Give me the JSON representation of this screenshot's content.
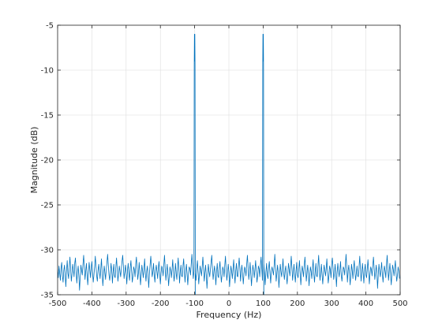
{
  "chart_data": {
    "type": "line",
    "title": "",
    "xlabel": "Frequency (Hz)",
    "ylabel": "Magnitude (dB)",
    "xlim": [
      -500,
      500
    ],
    "ylim": [
      -35,
      -5
    ],
    "xticks": [
      -500,
      -400,
      -300,
      -200,
      -100,
      0,
      100,
      200,
      300,
      400,
      500
    ],
    "yticks": [
      -35,
      -30,
      -25,
      -20,
      -15,
      -10,
      -5
    ],
    "grid": true,
    "series": [
      {
        "color": "#0072bd",
        "x_start": -500,
        "x_step": 2,
        "values": [
          -32.2,
          -33.1,
          -31.8,
          -32.6,
          -33.4,
          -32.0,
          -31.4,
          -32.9,
          -33.6,
          -32.3,
          -31.7,
          -32.8,
          -34.1,
          -32.4,
          -31.2,
          -32.6,
          -33.2,
          -31.9,
          -30.8,
          -32.1,
          -33.5,
          -32.7,
          -31.6,
          -32.2,
          -33.0,
          -31.5,
          -30.9,
          -32.4,
          -33.7,
          -32.5,
          -31.8,
          -32.9,
          -34.5,
          -33.0,
          -31.7,
          -32.3,
          -32.8,
          -31.6,
          -30.6,
          -31.9,
          -33.3,
          -32.4,
          -31.5,
          -32.7,
          -33.9,
          -32.6,
          -31.4,
          -32.2,
          -33.1,
          -32.0,
          -31.3,
          -32.5,
          -33.6,
          -32.8,
          -31.9,
          -30.7,
          -31.8,
          -32.9,
          -33.5,
          -32.3,
          -31.6,
          -32.4,
          -33.2,
          -32.1,
          -31.0,
          -32.6,
          -34.0,
          -32.9,
          -31.8,
          -32.5,
          -33.3,
          -32.2,
          -31.4,
          -30.5,
          -31.7,
          -32.8,
          -33.4,
          -32.6,
          -31.5,
          -32.3,
          -33.7,
          -32.4,
          -31.6,
          -32.9,
          -33.1,
          -31.9,
          -30.9,
          -32.2,
          -33.5,
          -32.7,
          -31.8,
          -32.4,
          -33.0,
          -32.1,
          -31.3,
          -30.6,
          -31.8,
          -33.2,
          -32.5,
          -31.7,
          -32.6,
          -33.8,
          -32.3,
          -31.5,
          -32.7,
          -33.4,
          -32.0,
          -31.2,
          -32.4,
          -33.6,
          -32.9,
          -31.9,
          -32.2,
          -33.0,
          -31.6,
          -30.8,
          -32.1,
          -33.3,
          -32.6,
          -31.4,
          -32.5,
          -33.9,
          -32.8,
          -31.7,
          -32.3,
          -33.1,
          -32.2,
          -31.0,
          -32.6,
          -33.5,
          -32.4,
          -31.8,
          -32.9,
          -34.2,
          -32.7,
          -31.6,
          -30.7,
          -31.9,
          -33.0,
          -32.5,
          -31.5,
          -32.8,
          -33.6,
          -32.3,
          -31.7,
          -32.4,
          -33.2,
          -32.0,
          -31.3,
          -32.7,
          -33.8,
          -32.6,
          -31.8,
          -32.1,
          -32.9,
          -31.7,
          -30.6,
          -32.0,
          -33.4,
          -32.5,
          -31.6,
          -32.8,
          -34.0,
          -32.9,
          -31.9,
          -32.3,
          -33.1,
          -32.2,
          -31.1,
          -32.5,
          -33.5,
          -32.7,
          -31.5,
          -32.6,
          -33.3,
          -32.0,
          -30.9,
          -32.2,
          -33.7,
          -32.4,
          -31.7,
          -32.9,
          -33.0,
          -31.8,
          -31.0,
          -32.5,
          -33.6,
          -32.3,
          -31.6,
          -32.7,
          -33.9,
          -32.6,
          -31.9,
          -32.1,
          -32.8,
          -31.6,
          -30.5,
          -31.8,
          -33.2,
          -32.4,
          -31.5,
          -32.6,
          -33.4,
          -32.1,
          -31.2,
          -32.5,
          -33.8,
          -32.7,
          -31.8,
          -32.3,
          -32.9,
          -31.9,
          -30.8,
          -32.0,
          -33.5,
          -32.6,
          -31.7,
          -32.8,
          -34.3,
          -32.9,
          -31.6,
          -32.4,
          -33.0,
          -32.2,
          -31.4,
          -30.6,
          -32.1,
          -33.3,
          -32.5,
          -31.8,
          -32.7,
          -33.9,
          -32.4,
          -31.5,
          -32.9,
          -33.1,
          -32.0,
          -31.3,
          -32.6,
          -33.6,
          -32.8,
          -31.9,
          -32.2,
          -33.0,
          -31.7,
          -30.7,
          -32.3,
          -33.4,
          -32.6,
          -31.6,
          -32.5,
          -34.1,
          -32.8,
          -31.8,
          -32.4,
          -33.2,
          -32.1,
          -31.1,
          -32.7,
          -33.7,
          -32.3,
          -31.5,
          -32.9,
          -33.0,
          -31.8,
          -30.9,
          -32.0,
          -33.5,
          -32.4,
          -31.7,
          -32.6,
          -33.8,
          -32.7,
          -31.9,
          -32.2,
          -32.9,
          -31.6,
          -30.6,
          -31.9,
          -33.3,
          -32.5,
          -31.4,
          -32.8,
          -34.0,
          -32.6,
          -31.7,
          -32.3,
          -33.1,
          -32.2,
          -31.2,
          -32.4,
          -33.6,
          -32.9,
          -31.8,
          -32.1,
          -33.0,
          -31.7,
          -30.8,
          -32.2,
          -33.4,
          -32.6,
          -31.6,
          -32.7,
          -33.9,
          -32.5,
          -31.5,
          -32.8,
          -33.2,
          -32.0,
          -31.3,
          -32.6,
          -33.7,
          -32.4,
          -31.9,
          -32.3,
          -32.8,
          -31.8,
          -30.5,
          -31.9,
          -33.5,
          -32.7,
          -31.7,
          -32.5,
          -34.2,
          -32.9,
          -31.6,
          -32.4,
          -33.0,
          -32.1,
          -31.0,
          -32.6,
          -33.3,
          -32.3,
          -31.8,
          -32.9,
          -33.8,
          -32.6,
          -31.5,
          -32.2,
          -32.9,
          -31.9,
          -30.7,
          -32.0,
          -33.4,
          -32.5,
          -31.6,
          -32.7,
          -33.6,
          -32.4,
          -31.4,
          -32.8,
          -33.1,
          -32.2,
          -31.2,
          -32.5,
          -33.9,
          -32.7,
          -31.8,
          -32.3,
          -33.0,
          -31.7,
          -30.8,
          -32.1,
          -33.5,
          -32.6,
          -31.7,
          -32.6,
          -34.0,
          -32.8,
          -31.9,
          -32.4,
          -33.2,
          -32.0,
          -31.1,
          -32.7,
          -33.6,
          -32.4,
          -31.5,
          -32.9,
          -33.0,
          -31.8,
          -30.6,
          -32.2,
          -33.4,
          -32.5,
          -31.6,
          -32.8,
          -33.8,
          -32.6,
          -31.7,
          -32.3,
          -32.9,
          -32.1,
          -31.0,
          -32.5,
          -33.7,
          -32.9,
          -31.8,
          -32.2,
          -33.1,
          -31.6,
          -30.9,
          -32.0,
          -33.3,
          -32.7,
          -31.6,
          -32.6,
          -34.1,
          -32.5,
          -31.5,
          -32.4,
          -33.0,
          -32.2,
          -31.3,
          -32.8,
          -33.5,
          -32.6,
          -31.9,
          -32.1,
          -32.8,
          -31.7,
          -30.5,
          -31.9,
          -33.6,
          -32.4,
          -31.7,
          -32.7,
          -33.9,
          -32.8,
          -31.6,
          -32.3,
          -33.2,
          -32.0,
          -31.2,
          -32.5,
          -33.4,
          -32.6,
          -31.8,
          -32.9,
          -33.0,
          -31.9,
          -30.7,
          -32.2,
          -33.5,
          -32.5,
          -31.5,
          -32.6,
          -33.7,
          -32.3,
          -31.6,
          -32.8,
          -33.1,
          -32.1,
          -31.1,
          -32.4,
          -33.8,
          -32.7,
          -31.9,
          -32.2,
          -32.9,
          -31.8,
          -30.8,
          -32.0,
          -33.3,
          -32.6,
          -31.7,
          -32.5,
          -34.3,
          -32.9,
          -31.6,
          -32.4,
          -33.0,
          -32.2,
          -31.4,
          -32.7,
          -33.6,
          -32.5,
          -31.8,
          -32.3,
          -33.1,
          -31.7,
          -30.6,
          -32.1,
          -33.4,
          -32.4,
          -31.5,
          -32.8,
          -33.9,
          -32.6,
          -31.7,
          -32.2,
          -32.9,
          -32.0,
          -31.2,
          -32.6,
          -33.5,
          -32.8,
          -31.9,
          -32.3,
          -33.2
        ]
      }
    ],
    "peaks": [
      {
        "x": -100,
        "peak": -6.0,
        "shoulder": -9.5,
        "base": -22.5
      },
      {
        "x": 100,
        "peak": -6.0,
        "shoulder": -9.5,
        "base": -22.5
      }
    ]
  }
}
